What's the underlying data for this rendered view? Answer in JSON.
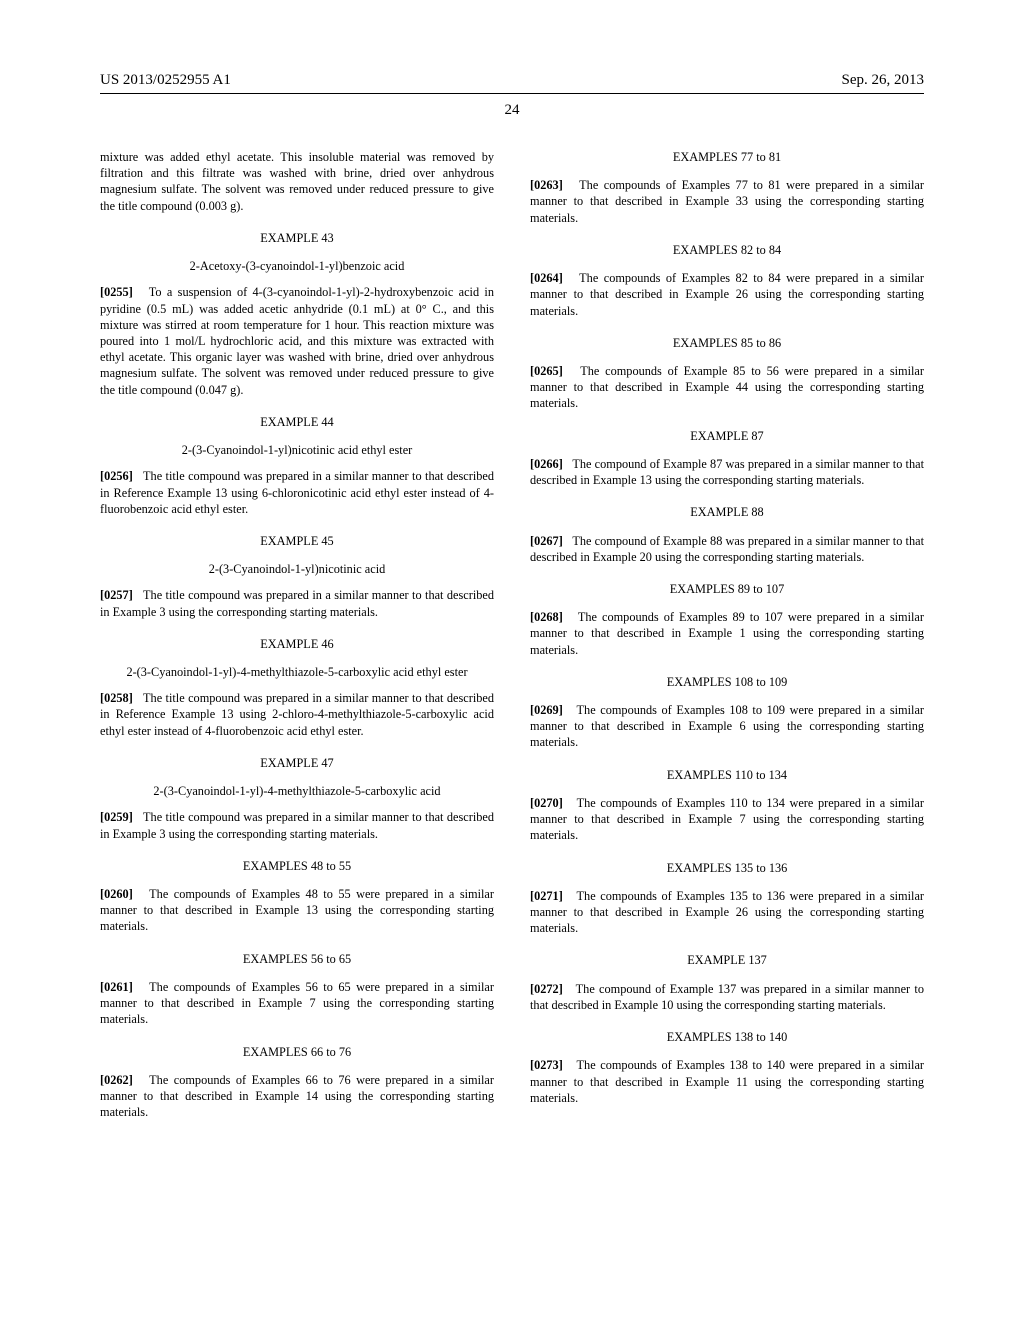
{
  "header": {
    "left": "US 2013/0252955 A1",
    "right": "Sep. 26, 2013"
  },
  "page_number": "24",
  "col1": {
    "intro": "mixture was added ethyl acetate. This insoluble material was removed by filtration and this filtrate was washed with brine, dried over anhydrous magnesium sulfate. The solvent was removed under reduced pressure to give the title compound (0.003 g).",
    "ex43": {
      "heading": "EXAMPLE 43",
      "title": "2-Acetoxy-(3-cyanoindol-1-yl)benzoic acid",
      "num": "[0255]",
      "text": "To a suspension of 4-(3-cyanoindol-1-yl)-2-hydroxybenzoic acid in pyridine (0.5 mL) was added acetic anhydride (0.1 mL) at 0° C., and this mixture was stirred at room temperature for 1 hour. This reaction mixture was poured into 1 mol/L hydrochloric acid, and this mixture was extracted with ethyl acetate. This organic layer was washed with brine, dried over anhydrous magnesium sulfate. The solvent was removed under reduced pressure to give the title compound (0.047 g)."
    },
    "ex44": {
      "heading": "EXAMPLE 44",
      "title": "2-(3-Cyanoindol-1-yl)nicotinic acid ethyl ester",
      "num": "[0256]",
      "text": "The title compound was prepared in a similar manner to that described in Reference Example 13 using 6-chloronicotinic acid ethyl ester instead of 4-fluorobenzoic acid ethyl ester."
    },
    "ex45": {
      "heading": "EXAMPLE 45",
      "title": "2-(3-Cyanoindol-1-yl)nicotinic acid",
      "num": "[0257]",
      "text": "The title compound was prepared in a similar manner to that described in Example 3 using the corresponding starting materials."
    },
    "ex46": {
      "heading": "EXAMPLE 46",
      "title": "2-(3-Cyanoindol-1-yl)-4-methylthiazole-5-carboxylic acid ethyl ester",
      "num": "[0258]",
      "text": "The title compound was prepared in a similar manner to that described in Reference Example 13 using 2-chloro-4-methylthiazole-5-carboxylic acid ethyl ester instead of 4-fluorobenzoic acid ethyl ester."
    },
    "ex47": {
      "heading": "EXAMPLE 47",
      "title": "2-(3-Cyanoindol-1-yl)-4-methylthiazole-5-carboxylic acid",
      "num": "[0259]",
      "text": "The title compound was prepared in a similar manner to that described in Example 3 using the corresponding starting materials."
    },
    "ex48_55": {
      "heading": "EXAMPLES 48 to 55",
      "num": "[0260]",
      "text": "The compounds of Examples 48 to 55 were prepared in a similar manner to that described in Example 13 using the corresponding starting materials."
    },
    "ex56_65": {
      "heading": "EXAMPLES 56 to 65",
      "num": "[0261]",
      "text": "The compounds of Examples 56 to 65 were prepared in a similar manner to that described in Example 7 using the corresponding starting materials."
    }
  },
  "col2": {
    "ex66_76": {
      "heading": "EXAMPLES 66 to 76",
      "num": "[0262]",
      "text": "The compounds of Examples 66 to 76 were prepared in a similar manner to that described in Example 14 using the corresponding starting materials."
    },
    "ex77_81": {
      "heading": "EXAMPLES 77 to 81",
      "num": "[0263]",
      "text": "The compounds of Examples 77 to 81 were prepared in a similar manner to that described in Example 33 using the corresponding starting materials."
    },
    "ex82_84": {
      "heading": "EXAMPLES 82 to 84",
      "num": "[0264]",
      "text": "The compounds of Examples 82 to 84 were prepared in a similar manner to that described in Example 26 using the corresponding starting materials."
    },
    "ex85_86": {
      "heading": "EXAMPLES 85 to 86",
      "num": "[0265]",
      "text": "The compounds of Example 85 to 56 were prepared in a similar manner to that described in Example 44 using the corresponding starting materials."
    },
    "ex87": {
      "heading": "EXAMPLE 87",
      "num": "[0266]",
      "text": "The compound of Example 87 was prepared in a similar manner to that described in Example 13 using the corresponding starting materials."
    },
    "ex88": {
      "heading": "EXAMPLE 88",
      "num": "[0267]",
      "text": "The compound of Example 88 was prepared in a similar manner to that described in Example 20 using the corresponding starting materials."
    },
    "ex89_107": {
      "heading": "EXAMPLES 89 to 107",
      "num": "[0268]",
      "text": "The compounds of Examples 89 to 107 were prepared in a similar manner to that described in Example 1 using the corresponding starting materials."
    },
    "ex108_109": {
      "heading": "EXAMPLES 108 to 109",
      "num": "[0269]",
      "text": "The compounds of Examples 108 to 109 were prepared in a similar manner to that described in Example 6 using the corresponding starting materials."
    },
    "ex110_134": {
      "heading": "EXAMPLES 110 to 134",
      "num": "[0270]",
      "text": "The compounds of Examples 110 to 134 were prepared in a similar manner to that described in Example 7 using the corresponding starting materials."
    },
    "ex135_136": {
      "heading": "EXAMPLES 135 to 136",
      "num": "[0271]",
      "text": "The compounds of Examples 135 to 136 were prepared in a similar manner to that described in Example 26 using the corresponding starting materials."
    },
    "ex137": {
      "heading": "EXAMPLE 137",
      "num": "[0272]",
      "text": "The compound of Example 137 was prepared in a similar manner to that described in Example 10 using the corresponding starting materials."
    },
    "ex138_140": {
      "heading": "EXAMPLES 138 to 140",
      "num": "[0273]",
      "text": "The compounds of Examples 138 to 140 were prepared in a similar manner to that described in Example 11 using the corresponding starting materials."
    }
  }
}
